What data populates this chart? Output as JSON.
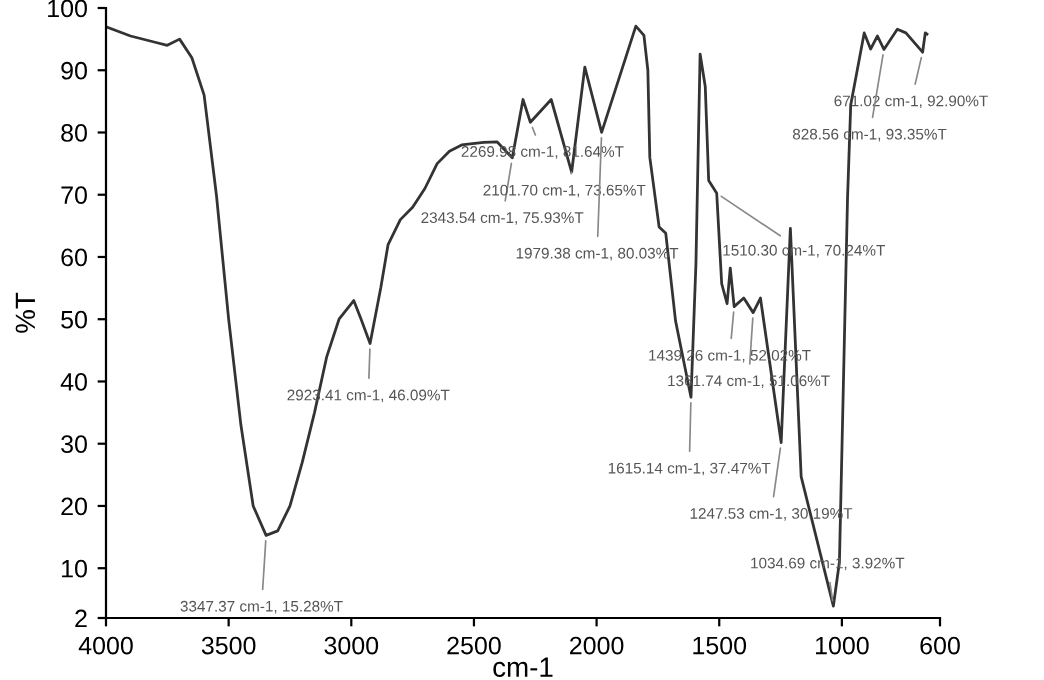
{
  "chart_data": {
    "type": "line",
    "xlabel": "cm-1",
    "ylabel": "%T",
    "xlim": [
      4000,
      600
    ],
    "xticks": [
      4000,
      3500,
      3000,
      2500,
      2000,
      1500,
      1000,
      600
    ],
    "ylim": [
      2,
      100
    ],
    "yticks": [
      2,
      10,
      20,
      30,
      40,
      50,
      60,
      70,
      80,
      90,
      100
    ],
    "grid": false,
    "marker": "none",
    "line_style": "solid",
    "series": [
      {
        "color": "#333333",
        "x": [
          4000,
          3900,
          3800,
          3750,
          3700,
          3650,
          3600,
          3550,
          3500,
          3450,
          3400,
          3347.37,
          3300,
          3250,
          3200,
          3150,
          3100,
          3050,
          2990,
          2960,
          2923.41,
          2880,
          2850,
          2800,
          2750,
          2700,
          2650,
          2600,
          2550,
          2460,
          2406,
          2343.54,
          2300,
          2269.98,
          2185,
          2101.7,
          2048,
          1979.38,
          1840,
          1807,
          1791,
          1783,
          1745,
          1718,
          1678,
          1615.14,
          1595,
          1578,
          1557,
          1543,
          1510.3,
          1490,
          1468,
          1455,
          1439.26,
          1400,
          1361.74,
          1332,
          1247.53,
          1210,
          1166,
          1034.69,
          1010,
          977,
          964,
          909,
          883,
          855,
          828.56,
          774,
          739,
          671.02,
          660,
          653
        ],
        "values": [
          97,
          95.5,
          94.5,
          94,
          95,
          92,
          86,
          70,
          50,
          33,
          20,
          15.28,
          16,
          20,
          27,
          35,
          44,
          50,
          53,
          50,
          46.09,
          55,
          62,
          66,
          68,
          71,
          75,
          77,
          78,
          78.4,
          78.5,
          75.93,
          85.3,
          81.64,
          85.3,
          73.65,
          90.5,
          80.03,
          97.1,
          95.6,
          90,
          76,
          64.8,
          63.8,
          49.7,
          37.47,
          58.9,
          92.6,
          87.4,
          72.3,
          70.24,
          55.7,
          52.5,
          58.2,
          52.02,
          53.4,
          51.06,
          53.4,
          30.19,
          64.6,
          24.7,
          3.92,
          11,
          69.4,
          84.4,
          96,
          93.4,
          95.5,
          93.35,
          96.6,
          96,
          92.9,
          96,
          95.8
        ]
      }
    ],
    "annotations": [
      {
        "text": "3347.37 cm-1, 15.28%T",
        "x": 3347.37,
        "y": 15.28
      },
      {
        "text": "2923.41 cm-1, 46.09%T",
        "x": 2923.41,
        "y": 46.09
      },
      {
        "text": "2343.54 cm-1, 75.93%T",
        "x": 2343.54,
        "y": 75.93
      },
      {
        "text": "2269.98 cm-1, 81.64%T",
        "x": 2269.98,
        "y": 81.64
      },
      {
        "text": "2101.70 cm-1, 73.65%T",
        "x": 2101.7,
        "y": 73.65
      },
      {
        "text": "1979.38 cm-1, 80.03%T",
        "x": 1979.38,
        "y": 80.03
      },
      {
        "text": "1510.30 cm-1, 70.24%T",
        "x": 1510.3,
        "y": 70.24
      },
      {
        "text": "1439.26 cm-1, 52.02%T",
        "x": 1439.26,
        "y": 52.02
      },
      {
        "text": "1361.74 cm-1, 51.06%T",
        "x": 1361.74,
        "y": 51.06
      },
      {
        "text": "1615.14 cm-1, 37.47%T",
        "x": 1615.14,
        "y": 37.47
      },
      {
        "text": "1247.53 cm-1, 30.19%T",
        "x": 1247.53,
        "y": 30.19
      },
      {
        "text": "1034.69 cm-1, 3.92%T",
        "x": 1034.69,
        "y": 3.92
      },
      {
        "text": "671.02 cm-1, 92.90%T",
        "x": 671.02,
        "y": 92.9
      },
      {
        "text": "828.56 cm-1, 93.35%T",
        "x": 828.56,
        "y": 93.35
      }
    ]
  }
}
